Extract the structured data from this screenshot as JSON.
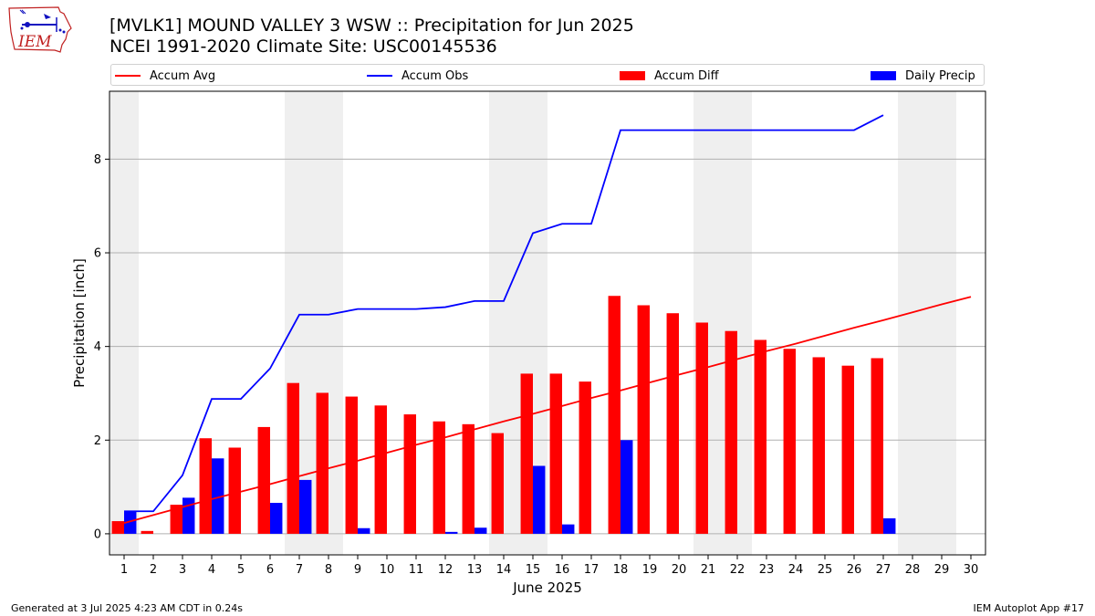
{
  "header": {
    "title_line1": "[MVLK1] MOUND VALLEY 3 WSW :: Precipitation for Jun 2025",
    "title_line2": "NCEI 1991-2020 Climate Site: USC00145536"
  },
  "logo": {
    "text": "IEM"
  },
  "footer": {
    "generated": "Generated at 3 Jul 2025 4:23 AM CDT in 0.24s",
    "app": "IEM Autoplot App #17"
  },
  "colors": {
    "accum_avg": "#ff0000",
    "accum_obs": "#0000ff",
    "accum_diff": "#ff0000",
    "daily_precip": "#0000ff",
    "weekend_band": "#efefef",
    "grid": "#b0b0b0"
  },
  "chart_data": {
    "type": "bar",
    "xlabel": "June 2025",
    "ylabel": "Precipitation [inch]",
    "x": [
      1,
      2,
      3,
      4,
      5,
      6,
      7,
      8,
      9,
      10,
      11,
      12,
      13,
      14,
      15,
      16,
      17,
      18,
      19,
      20,
      21,
      22,
      23,
      24,
      25,
      26,
      27,
      28,
      29,
      30
    ],
    "xlim": [
      0.5,
      30.5
    ],
    "ylim": [
      -0.45,
      9.45
    ],
    "yticks": [
      0,
      2,
      4,
      6,
      8
    ],
    "grid": "horizontal",
    "legend_position": "top",
    "weekend_days": [
      1,
      7,
      8,
      14,
      15,
      21,
      22,
      28,
      29
    ],
    "series": [
      {
        "name": "Accum Avg",
        "kind": "line",
        "values": [
          0.23,
          0.4,
          0.57,
          0.74,
          0.9,
          1.06,
          1.23,
          1.4,
          1.56,
          1.73,
          1.9,
          2.06,
          2.23,
          2.4,
          2.56,
          2.73,
          2.9,
          3.06,
          3.23,
          3.4,
          3.56,
          3.73,
          3.9,
          4.06,
          4.23,
          4.4,
          4.56,
          4.73,
          4.9,
          5.06
        ]
      },
      {
        "name": "Accum Obs",
        "kind": "line",
        "values": [
          0.48,
          0.48,
          1.25,
          2.88,
          2.88,
          3.53,
          4.68,
          4.68,
          4.8,
          4.8,
          4.8,
          4.84,
          4.97,
          4.97,
          6.42,
          6.62,
          6.62,
          8.62,
          8.62,
          8.62,
          8.62,
          8.62,
          8.62,
          8.62,
          8.62,
          8.62,
          8.94,
          null,
          null,
          null
        ]
      },
      {
        "name": "Accum Diff",
        "kind": "bar",
        "values": [
          0.27,
          0.06,
          0.62,
          2.04,
          1.84,
          2.28,
          3.22,
          3.01,
          2.93,
          2.74,
          2.55,
          2.4,
          2.34,
          2.15,
          3.42,
          3.42,
          3.25,
          5.08,
          4.88,
          4.71,
          4.51,
          4.33,
          4.14,
          3.95,
          3.77,
          3.59,
          3.75,
          null,
          null,
          null
        ]
      },
      {
        "name": "Daily Precip",
        "kind": "bar",
        "values": [
          0.48,
          0.0,
          0.77,
          1.61,
          0.0,
          0.66,
          1.15,
          0.0,
          0.12,
          0.0,
          0.0,
          0.04,
          0.13,
          0.0,
          1.45,
          0.2,
          0.0,
          2.0,
          0.0,
          0.0,
          0.0,
          0.0,
          0.0,
          0.0,
          0.0,
          0.0,
          0.33,
          null,
          null,
          null
        ]
      }
    ]
  }
}
